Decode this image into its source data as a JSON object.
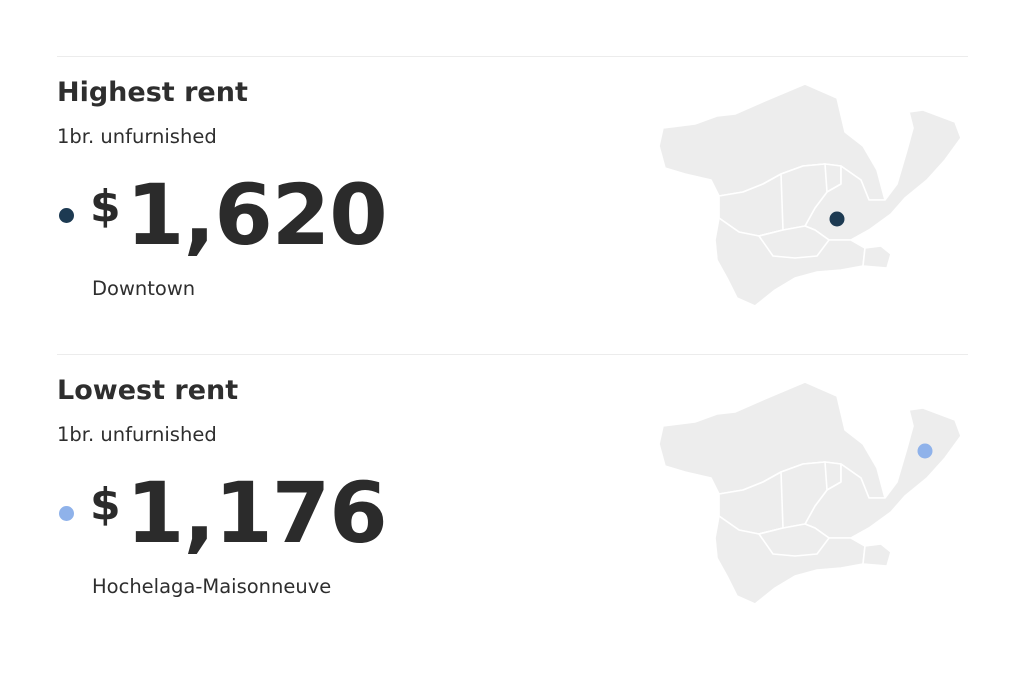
{
  "sections": [
    {
      "title": "Highest rent",
      "subtitle": "1br. unfurnished",
      "currency": "$",
      "amount": "1,620",
      "neighbourhood": "Downtown",
      "marker_color": "#1d3a52",
      "map_icon": "neighbourhood-map-icon"
    },
    {
      "title": "Lowest rent",
      "subtitle": "1br. unfurnished",
      "currency": "$",
      "amount": "1,176",
      "neighbourhood": "Hochelaga-Maisonneuve",
      "marker_color": "#8fb2ea",
      "map_icon": "neighbourhood-map-icon"
    }
  ]
}
